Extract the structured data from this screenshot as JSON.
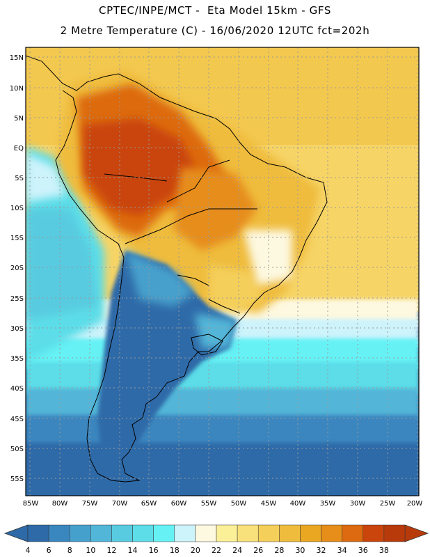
{
  "header": {
    "line1": "CPTEC/INPE/MCT -  Eta Model 15km - GFS",
    "line2": "2 Metre Temperature (C) - 16/06/2020 12UTC fct=202h"
  },
  "map": {
    "lat_labels": [
      "15N",
      "10N",
      "5N",
      "EQ",
      "5S",
      "10S",
      "15S",
      "20S",
      "25S",
      "30S",
      "35S",
      "40S",
      "45S",
      "50S",
      "55S"
    ],
    "lon_labels": [
      "85W",
      "80W",
      "75W",
      "70W",
      "65W",
      "60W",
      "55W",
      "50W",
      "45W",
      "40W",
      "35W",
      "30W",
      "25W",
      "20W"
    ]
  },
  "colorbar": {
    "labels": [
      "4",
      "6",
      "8",
      "10",
      "12",
      "14",
      "16",
      "18",
      "20",
      "22",
      "24",
      "26",
      "28",
      "30",
      "32",
      "34",
      "36",
      "38"
    ],
    "colors": [
      "#2e6aa8",
      "#3a86bf",
      "#46a0cc",
      "#52b6d8",
      "#58cbe0",
      "#5cdde8",
      "#66f2f5",
      "#cdf3fb",
      "#fdf8e0",
      "#fbef98",
      "#f8e07a",
      "#f4cf5a",
      "#efbc3d",
      "#eaa722",
      "#e68d1a",
      "#dd6a10",
      "#c9450b",
      "#b83a0a"
    ]
  }
}
